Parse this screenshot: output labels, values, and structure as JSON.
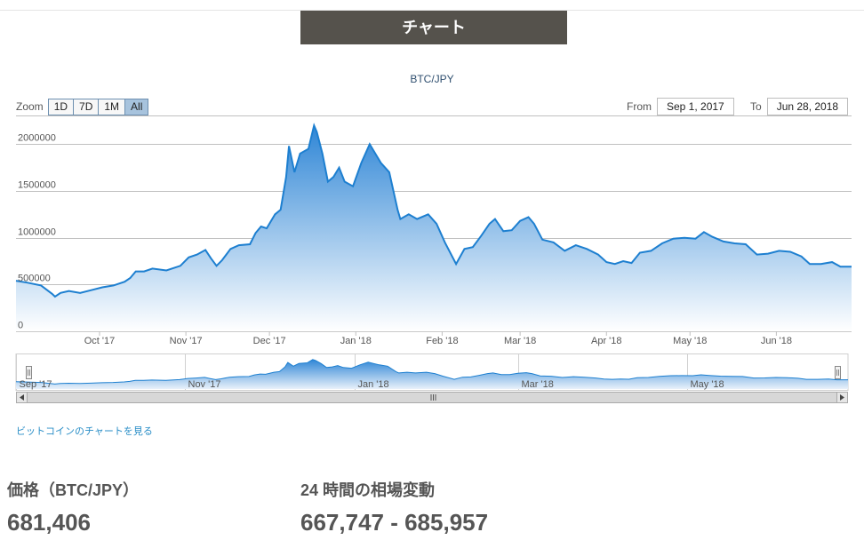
{
  "banner": {
    "title": "チャート"
  },
  "chart_title": "BTC/JPY",
  "zoom": {
    "label": "Zoom",
    "buttons": [
      "1D",
      "7D",
      "1M",
      "All"
    ],
    "active": "All"
  },
  "range": {
    "from_label": "From",
    "from_value": "Sep 1, 2017",
    "to_label": "To",
    "to_value": "Jun 28, 2018"
  },
  "link_text": "ビットコインのチャートを見る",
  "stats": {
    "price_label": "価格（BTC/JPY）",
    "price_value": "681,406",
    "range_label": "24 時間の相場変動",
    "range_value": "667,747 - 685,957"
  },
  "colors": {
    "line": "#1d7fd0",
    "fill_top": "#2f86d6",
    "fill_bottom": "#ffffff"
  },
  "chart_data": {
    "type": "area",
    "title": "BTC/JPY",
    "x_range": [
      "2017-09-01",
      "2018-06-28"
    ],
    "ylim": [
      0,
      2250000
    ],
    "y_ticks": [
      0,
      500000,
      1000000,
      1500000,
      2000000
    ],
    "y_tick_labels": [
      "0",
      "500000",
      "1000000",
      "1500000",
      "2000000"
    ],
    "x_ticks": [
      {
        "date": "2017-10-01",
        "label": "Oct '17"
      },
      {
        "date": "2017-11-01",
        "label": "Nov '17"
      },
      {
        "date": "2017-12-01",
        "label": "Dec '17"
      },
      {
        "date": "2018-01-01",
        "label": "Jan '18"
      },
      {
        "date": "2018-02-01",
        "label": "Feb '18"
      },
      {
        "date": "2018-03-01",
        "label": "Mar '18"
      },
      {
        "date": "2018-04-01",
        "label": "Apr '18"
      },
      {
        "date": "2018-05-01",
        "label": "May '18"
      },
      {
        "date": "2018-06-01",
        "label": "Jun '18"
      }
    ],
    "navigator_ticks": [
      {
        "date": "2017-09-01",
        "label": "Sep '17"
      },
      {
        "date": "2017-11-01",
        "label": "Nov '17"
      },
      {
        "date": "2018-01-01",
        "label": "Jan '18"
      },
      {
        "date": "2018-03-01",
        "label": "Mar '18"
      },
      {
        "date": "2018-05-01",
        "label": "May '18"
      }
    ],
    "grid": true,
    "legend": "none",
    "series": [
      {
        "points": [
          [
            "2017-09-01",
            540000
          ],
          [
            "2017-09-05",
            520000
          ],
          [
            "2017-09-10",
            490000
          ],
          [
            "2017-09-14",
            400000
          ],
          [
            "2017-09-15",
            370000
          ],
          [
            "2017-09-17",
            410000
          ],
          [
            "2017-09-20",
            430000
          ],
          [
            "2017-09-24",
            410000
          ],
          [
            "2017-09-28",
            440000
          ],
          [
            "2017-10-02",
            470000
          ],
          [
            "2017-10-06",
            490000
          ],
          [
            "2017-10-10",
            530000
          ],
          [
            "2017-10-12",
            570000
          ],
          [
            "2017-10-14",
            640000
          ],
          [
            "2017-10-17",
            640000
          ],
          [
            "2017-10-20",
            670000
          ],
          [
            "2017-10-25",
            650000
          ],
          [
            "2017-10-30",
            700000
          ],
          [
            "2017-11-02",
            790000
          ],
          [
            "2017-11-05",
            820000
          ],
          [
            "2017-11-08",
            870000
          ],
          [
            "2017-11-10",
            780000
          ],
          [
            "2017-11-12",
            700000
          ],
          [
            "2017-11-14",
            760000
          ],
          [
            "2017-11-17",
            880000
          ],
          [
            "2017-11-20",
            920000
          ],
          [
            "2017-11-24",
            930000
          ],
          [
            "2017-11-26",
            1050000
          ],
          [
            "2017-11-28",
            1120000
          ],
          [
            "2017-11-30",
            1100000
          ],
          [
            "2017-12-03",
            1250000
          ],
          [
            "2017-12-05",
            1300000
          ],
          [
            "2017-12-07",
            1650000
          ],
          [
            "2017-12-08",
            1980000
          ],
          [
            "2017-12-10",
            1700000
          ],
          [
            "2017-12-12",
            1900000
          ],
          [
            "2017-12-15",
            1950000
          ],
          [
            "2017-12-17",
            2200000
          ],
          [
            "2017-12-18",
            2130000
          ],
          [
            "2017-12-20",
            1900000
          ],
          [
            "2017-12-22",
            1600000
          ],
          [
            "2017-12-24",
            1650000
          ],
          [
            "2017-12-26",
            1750000
          ],
          [
            "2017-12-28",
            1600000
          ],
          [
            "2017-12-31",
            1550000
          ],
          [
            "2018-01-03",
            1800000
          ],
          [
            "2018-01-06",
            2000000
          ],
          [
            "2018-01-08",
            1900000
          ],
          [
            "2018-01-10",
            1800000
          ],
          [
            "2018-01-13",
            1700000
          ],
          [
            "2018-01-16",
            1300000
          ],
          [
            "2018-01-17",
            1200000
          ],
          [
            "2018-01-20",
            1250000
          ],
          [
            "2018-01-23",
            1200000
          ],
          [
            "2018-01-27",
            1250000
          ],
          [
            "2018-01-30",
            1150000
          ],
          [
            "2018-02-02",
            950000
          ],
          [
            "2018-02-06",
            720000
          ],
          [
            "2018-02-09",
            880000
          ],
          [
            "2018-02-12",
            900000
          ],
          [
            "2018-02-15",
            1020000
          ],
          [
            "2018-02-18",
            1150000
          ],
          [
            "2018-02-20",
            1200000
          ],
          [
            "2018-02-23",
            1070000
          ],
          [
            "2018-02-26",
            1080000
          ],
          [
            "2018-03-01",
            1180000
          ],
          [
            "2018-03-04",
            1220000
          ],
          [
            "2018-03-06",
            1150000
          ],
          [
            "2018-03-09",
            980000
          ],
          [
            "2018-03-13",
            950000
          ],
          [
            "2018-03-17",
            860000
          ],
          [
            "2018-03-21",
            920000
          ],
          [
            "2018-03-25",
            880000
          ],
          [
            "2018-03-29",
            820000
          ],
          [
            "2018-04-01",
            740000
          ],
          [
            "2018-04-04",
            720000
          ],
          [
            "2018-04-07",
            750000
          ],
          [
            "2018-04-10",
            730000
          ],
          [
            "2018-04-13",
            840000
          ],
          [
            "2018-04-17",
            860000
          ],
          [
            "2018-04-21",
            940000
          ],
          [
            "2018-04-25",
            990000
          ],
          [
            "2018-04-29",
            1000000
          ],
          [
            "2018-05-03",
            990000
          ],
          [
            "2018-05-06",
            1060000
          ],
          [
            "2018-05-09",
            1010000
          ],
          [
            "2018-05-13",
            960000
          ],
          [
            "2018-05-17",
            940000
          ],
          [
            "2018-05-21",
            930000
          ],
          [
            "2018-05-25",
            820000
          ],
          [
            "2018-05-29",
            830000
          ],
          [
            "2018-06-02",
            860000
          ],
          [
            "2018-06-06",
            850000
          ],
          [
            "2018-06-10",
            800000
          ],
          [
            "2018-06-13",
            720000
          ],
          [
            "2018-06-17",
            720000
          ],
          [
            "2018-06-21",
            740000
          ],
          [
            "2018-06-24",
            690000
          ],
          [
            "2018-06-28",
            690000
          ]
        ]
      }
    ]
  }
}
